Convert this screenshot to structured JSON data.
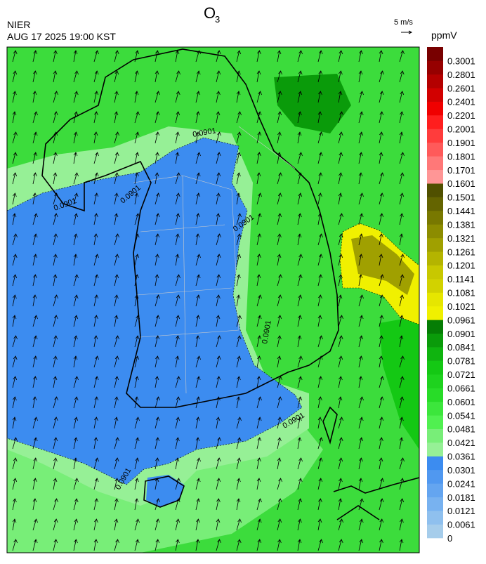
{
  "header": {
    "title": "O",
    "title_subscript": "3",
    "agency": "NIER",
    "datetime": "AUG 17 2025 19:00 KST",
    "wind_scale": "5 m/s"
  },
  "legend": {
    "unit": "ppmV",
    "labels": [
      0,
      0.0061,
      0.0121,
      0.0181,
      0.0241,
      0.0301,
      0.0361,
      0.0421,
      0.0481,
      0.0541,
      0.0601,
      0.0661,
      0.0721,
      0.0781,
      0.0841,
      0.0901,
      0.0961,
      0.1021,
      0.1081,
      0.1141,
      0.1201,
      0.1261,
      0.1321,
      0.1381,
      0.1441,
      0.1501,
      0.1601,
      0.1701,
      0.1801,
      0.1901,
      0.2001,
      0.2201,
      0.2401,
      0.2601,
      0.2801,
      0.3001
    ],
    "colors": [
      "#a6cdeb",
      "#8fc0ee",
      "#78b2f0",
      "#64a5f0",
      "#5098f0",
      "#3c8cf0",
      "#96f096",
      "#78ee78",
      "#50f050",
      "#3ce63c",
      "#28dc28",
      "#1ed21e",
      "#14c814",
      "#0fb40f",
      "#0a9b0a",
      "#057d05",
      "#f0f000",
      "#e6e600",
      "#d2d200",
      "#c8c800",
      "#b4b400",
      "#a0a000",
      "#8c8c00",
      "#787800",
      "#646400",
      "#505000",
      "#ff9696",
      "#ff7878",
      "#ff5a5a",
      "#ff3c3c",
      "#ff1e1e",
      "#f00000",
      "#d20000",
      "#b40000",
      "#960000",
      "#780000"
    ]
  },
  "map": {
    "contour_labels": [
      "0.0901",
      "0.0901",
      "0.0901",
      "0.0901",
      "0.0901",
      "0.0901",
      "0.0901"
    ]
  }
}
